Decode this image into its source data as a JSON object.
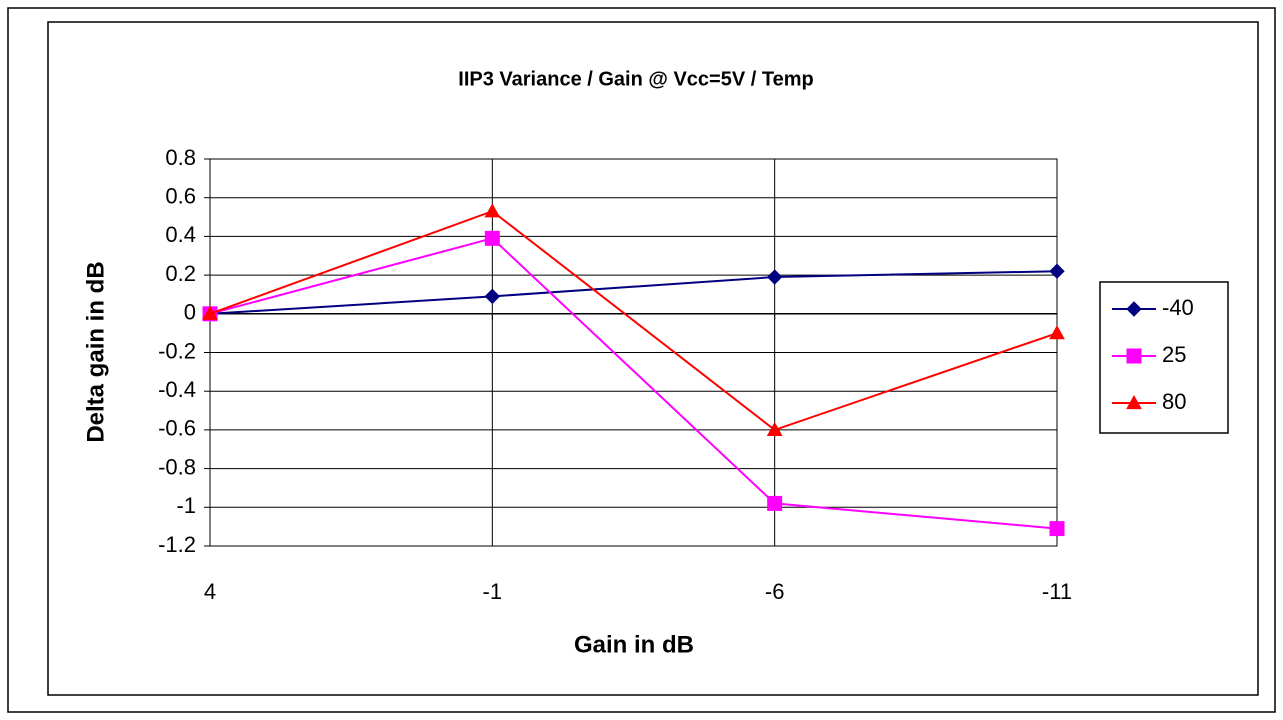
{
  "chart_data": {
    "type": "line",
    "title": "IIP3 Variance / Gain @ Vcc=5V / Temp",
    "x_label": "Gain in dB",
    "y_label": "Delta gain in dB",
    "categories": [
      "4",
      "-1",
      "-6",
      "-11"
    ],
    "series": [
      {
        "name": "-40",
        "color": "#000080",
        "marker": "diamond",
        "values": [
          0,
          0.09,
          0.19,
          0.22
        ]
      },
      {
        "name": "25",
        "color": "#ff00ff",
        "marker": "square",
        "values": [
          0,
          0.39,
          -0.98,
          -1.11
        ]
      },
      {
        "name": "80",
        "color": "#ff0000",
        "marker": "triangle",
        "values": [
          0,
          0.53,
          -0.6,
          -0.1
        ]
      }
    ],
    "ylim": [
      -1.2,
      0.8
    ],
    "yticks": [
      -1.2,
      -1,
      -0.8,
      -0.6,
      -0.4,
      -0.2,
      0,
      0.2,
      0.4,
      0.6,
      0.8
    ],
    "grid": true,
    "legend": "right"
  }
}
